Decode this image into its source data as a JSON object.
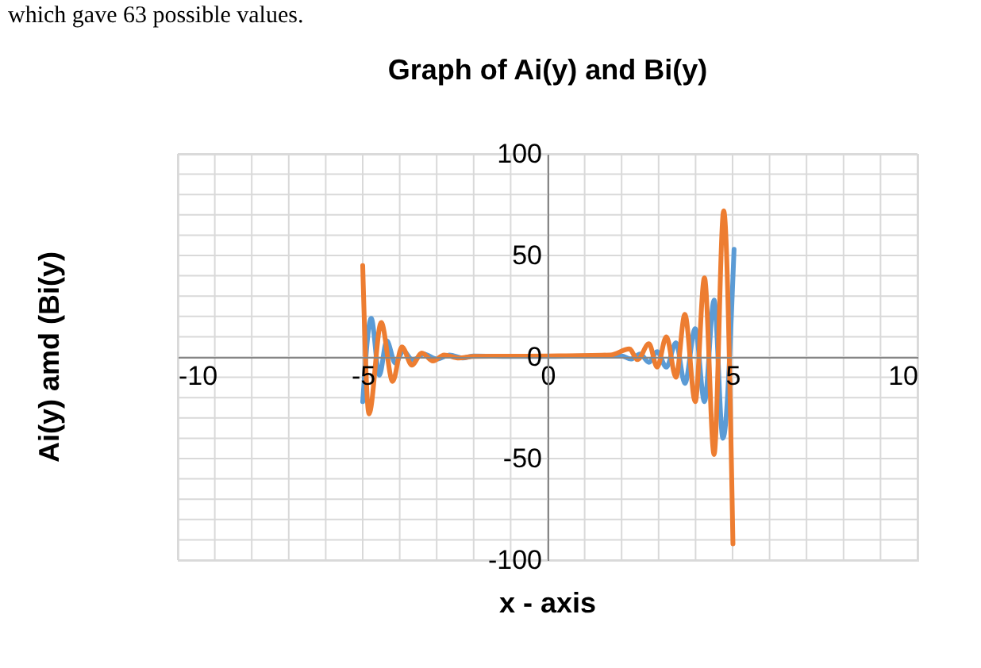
{
  "chart_data": {
    "type": "line",
    "title": "Graph of Ai(y) and Bi(y)",
    "xlabel": "x - axis",
    "ylabel": "Ai(y) amd (Bi(y)",
    "annotations": [
      "which gave 63 possible values."
    ],
    "xlim": [
      -10,
      10
    ],
    "ylim": [
      -100,
      100
    ],
    "xticks": [
      -10,
      {
        "value": -9,
        "label": null
      },
      {
        "value": -8,
        "label": null
      },
      {
        "value": -7,
        "label": null
      },
      {
        "value": -6,
        "label": null
      },
      -5,
      {
        "value": -4,
        "label": null
      },
      {
        "value": -3,
        "label": null
      },
      {
        "value": -2,
        "label": null
      },
      {
        "value": -1,
        "label": null
      },
      0,
      {
        "value": 1,
        "label": null
      },
      {
        "value": 2,
        "label": null
      },
      {
        "value": 3,
        "label": null
      },
      {
        "value": 4,
        "label": null
      },
      5,
      {
        "value": 6,
        "label": null
      },
      {
        "value": 7,
        "label": null
      },
      {
        "value": 8,
        "label": null
      },
      {
        "value": 9,
        "label": null
      },
      10
    ],
    "yticks": [
      -100,
      {
        "value": -90,
        "label": null
      },
      {
        "value": -80,
        "label": null
      },
      {
        "value": -70,
        "label": null
      },
      {
        "value": -60,
        "label": null
      },
      -50,
      {
        "value": -40,
        "label": null
      },
      {
        "value": -30,
        "label": null
      },
      {
        "value": -20,
        "label": null
      },
      {
        "value": -10,
        "label": null
      },
      0,
      {
        "value": 10,
        "label": null
      },
      {
        "value": 20,
        "label": null
      },
      {
        "value": 30,
        "label": null
      },
      {
        "value": 40,
        "label": null
      },
      50,
      {
        "value": 60,
        "label": null
      },
      {
        "value": 70,
        "label": null
      },
      {
        "value": 80,
        "label": null
      },
      {
        "value": 90,
        "label": null
      },
      100
    ],
    "grid": true,
    "marker": "none",
    "line_style": "solid",
    "series": [
      {
        "color": "#5b9bd5",
        "x": [
          -5,
          -4.77,
          -4.55,
          -4.35,
          -4.12,
          -3.9,
          -3.65,
          -3.35,
          -3.0,
          -2.65,
          -2.3,
          -2.0,
          -1,
          0,
          1,
          1.7,
          2.0,
          2.25,
          2.5,
          2.74,
          2.96,
          3.21,
          3.47,
          3.71,
          3.99,
          4.24,
          4.5,
          4.74,
          5.04
        ],
        "values": [
          -22,
          19,
          -9,
          8,
          -3,
          3,
          -1.5,
          1.5,
          -1,
          1,
          -0.5,
          0.5,
          0.3,
          0.3,
          0.5,
          0.5,
          0.5,
          -1,
          1.5,
          -2.6,
          2.6,
          -5,
          7,
          -13,
          14,
          -22,
          28,
          -40,
          53
        ]
      },
      {
        "color": "#ed7d31",
        "x": [
          -5,
          -4.83,
          -4.5,
          -4.19,
          -3.94,
          -3.67,
          -3.4,
          -3.1,
          -2.8,
          -2.4,
          -2,
          0,
          1.7,
          2.21,
          2.43,
          2.74,
          2.96,
          3.21,
          3.47,
          3.71,
          3.99,
          4.24,
          4.5,
          4.76,
          5.01
        ],
        "values": [
          45,
          -28,
          17,
          -12,
          5,
          -4,
          2,
          -2,
          1,
          -0.5,
          0.3,
          0.5,
          1,
          4,
          -1.3,
          6.5,
          -5,
          10,
          -10,
          21,
          -22,
          39,
          -48,
          72,
          -92
        ]
      }
    ]
  }
}
